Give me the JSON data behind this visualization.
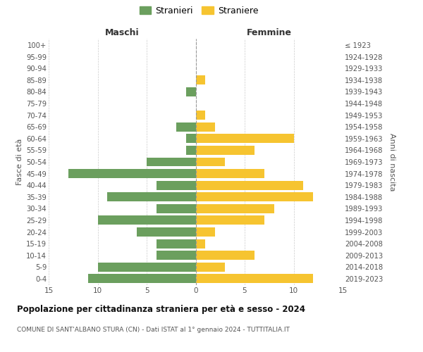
{
  "age_groups_bottom_to_top": [
    "0-4",
    "5-9",
    "10-14",
    "15-19",
    "20-24",
    "25-29",
    "30-34",
    "35-39",
    "40-44",
    "45-49",
    "50-54",
    "55-59",
    "60-64",
    "65-69",
    "70-74",
    "75-79",
    "80-84",
    "85-89",
    "90-94",
    "95-99",
    "100+"
  ],
  "birth_years_bottom_to_top": [
    "2019-2023",
    "2014-2018",
    "2009-2013",
    "2004-2008",
    "1999-2003",
    "1994-1998",
    "1989-1993",
    "1984-1988",
    "1979-1983",
    "1974-1978",
    "1969-1973",
    "1964-1968",
    "1959-1963",
    "1954-1958",
    "1949-1953",
    "1944-1948",
    "1939-1943",
    "1934-1938",
    "1929-1933",
    "1924-1928",
    "≤ 1923"
  ],
  "maschi_bottom_to_top": [
    11,
    10,
    4,
    4,
    6,
    10,
    4,
    9,
    4,
    13,
    5,
    1,
    1,
    2,
    0,
    0,
    1,
    0,
    0,
    0,
    0
  ],
  "femmine_bottom_to_top": [
    12,
    3,
    6,
    1,
    2,
    7,
    8,
    12,
    11,
    7,
    3,
    6,
    10,
    2,
    1,
    0,
    0,
    1,
    0,
    0,
    0
  ],
  "maschi_color": "#6b9f5e",
  "femmine_color": "#f6c430",
  "title": "Popolazione per cittadinanza straniera per età e sesso - 2024",
  "subtitle": "COMUNE DI SANT'ALBANO STURA (CN) - Dati ISTAT al 1° gennaio 2024 - TUTTITALIA.IT",
  "xlabel_left": "Maschi",
  "xlabel_right": "Femmine",
  "ylabel_left": "Fasce di età",
  "ylabel_right": "Anni di nascita",
  "legend_stranieri": "Stranieri",
  "legend_straniere": "Straniere",
  "xlim": 15,
  "background_color": "#ffffff",
  "grid_color": "#cccccc"
}
